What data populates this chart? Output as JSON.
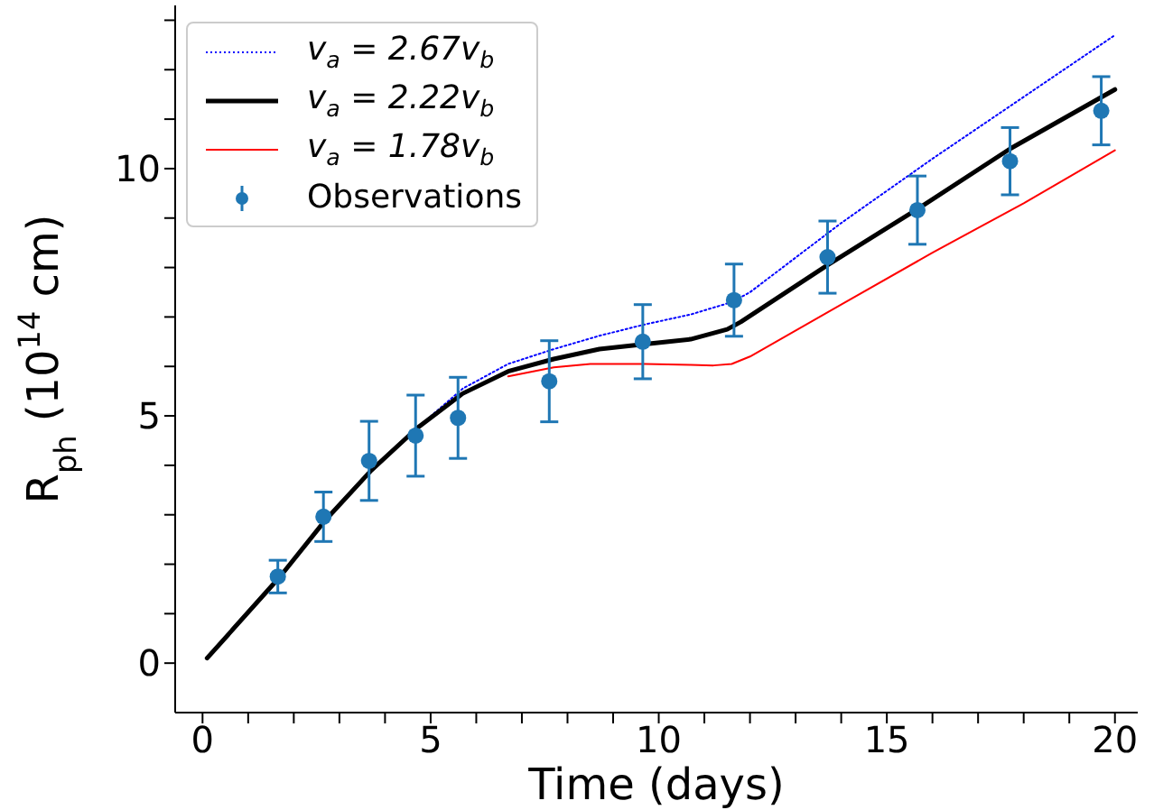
{
  "chart_data": {
    "type": "line",
    "xlabel": "Time (days)",
    "ylabel": "R$_{ph}$ (10$^{14}$ cm)",
    "xlim": [
      -0.6,
      20.5
    ],
    "ylim": [
      -1,
      13.3
    ],
    "xticks": [
      0,
      {
        "value": 1,
        "label": null
      },
      {
        "value": 2,
        "label": null
      },
      {
        "value": 3,
        "label": null
      },
      {
        "value": 4,
        "label": null
      },
      5,
      {
        "value": 6,
        "label": null
      },
      {
        "value": 7,
        "label": null
      },
      {
        "value": 8,
        "label": null
      },
      {
        "value": 9,
        "label": null
      },
      10,
      {
        "value": 11,
        "label": null
      },
      {
        "value": 12,
        "label": null
      },
      {
        "value": 13,
        "label": null
      },
      {
        "value": 14,
        "label": null
      },
      15,
      {
        "value": 16,
        "label": null
      },
      {
        "value": 17,
        "label": null
      },
      {
        "value": 18,
        "label": null
      },
      {
        "value": 19,
        "label": null
      },
      20
    ],
    "yticks": [
      0,
      {
        "value": 1,
        "label": null
      },
      {
        "value": 2,
        "label": null
      },
      {
        "value": 3,
        "label": null
      },
      {
        "value": 4,
        "label": null
      },
      5,
      {
        "value": 6,
        "label": null
      },
      {
        "value": 7,
        "label": null
      },
      {
        "value": 8,
        "label": null
      },
      {
        "value": 9,
        "label": null
      },
      10,
      {
        "value": 11,
        "label": null
      },
      {
        "value": 12,
        "label": null
      },
      {
        "value": 13,
        "label": null
      }
    ],
    "legend": "top left",
    "series": [
      {
        "name": "v$_{a}$ = 2.67v$_{b}$",
        "color": "#0000ff",
        "line_style": "dotted",
        "x": [
          4.7,
          5.7,
          6.7,
          7.7,
          8.7,
          9.7,
          10.7,
          11.6,
          12,
          14,
          16,
          18,
          20
        ],
        "values": [
          4.75,
          5.55,
          6.05,
          6.35,
          6.62,
          6.85,
          7.05,
          7.3,
          7.5,
          8.9,
          10.2,
          11.45,
          12.7
        ]
      },
      {
        "name": "v$_{a}$ = 2.22v$_{b}$",
        "color": "#000000",
        "line_style": "solid",
        "x": [
          0.1,
          1.7,
          2.7,
          3.7,
          4.7,
          5.7,
          6.7,
          7.7,
          8.7,
          9.7,
          10.7,
          11.5,
          11.8,
          13.7,
          15.7,
          17.7,
          20
        ],
        "values": [
          0.1,
          1.75,
          2.9,
          3.9,
          4.75,
          5.45,
          5.9,
          6.15,
          6.35,
          6.45,
          6.55,
          6.75,
          6.9,
          8.05,
          9.2,
          10.4,
          11.6
        ]
      },
      {
        "name": "v$_{a}$ = 1.78v$_{b}$",
        "color": "#ff0000",
        "line_style": "solid",
        "x": [
          6.7,
          7.7,
          8.5,
          9.7,
          10.7,
          11.2,
          11.6,
          12,
          14,
          16,
          18,
          20
        ],
        "values": [
          5.8,
          5.98,
          6.05,
          6.05,
          6.03,
          6.02,
          6.05,
          6.2,
          7.25,
          8.3,
          9.3,
          10.37
        ]
      },
      {
        "name": "Observations",
        "type": "scatter",
        "color": "#1f77b4",
        "marker": "circle",
        "x": [
          1.65,
          2.65,
          3.65,
          4.67,
          5.6,
          7.6,
          9.65,
          11.65,
          13.7,
          15.67,
          17.7,
          19.7
        ],
        "values": [
          1.75,
          2.96,
          4.09,
          4.6,
          4.96,
          5.7,
          6.5,
          7.34,
          8.21,
          9.16,
          10.15,
          11.17
        ],
        "errors": [
          0.33,
          0.5,
          0.8,
          0.82,
          0.82,
          0.82,
          0.75,
          0.73,
          0.73,
          0.69,
          0.68,
          0.69
        ]
      }
    ]
  }
}
